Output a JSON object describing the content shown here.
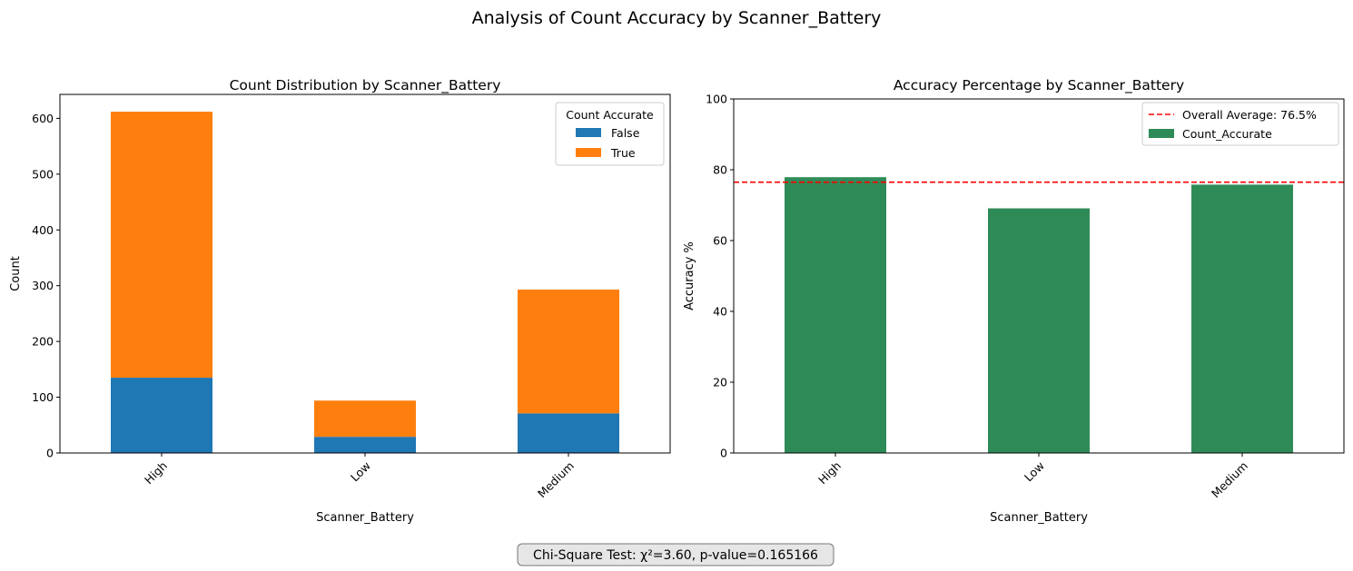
{
  "figure": {
    "suptitle": "Analysis of Count Accuracy by Scanner_Battery",
    "footer_note": "Chi-Square Test: χ²=3.60, p-value=0.165166"
  },
  "colors": {
    "false": "#1f77b4",
    "true": "#ff7f0e",
    "accuracy_bar": "#2e8b57",
    "average_line": "#ff0000",
    "footer_bg": "#e6e6e6",
    "footer_border": "#777777"
  },
  "chart_data": [
    {
      "type": "bar",
      "stacked": true,
      "title": "Count Distribution by Scanner_Battery",
      "xlabel": "Scanner_Battery",
      "ylabel": "Count",
      "categories": [
        "High",
        "Low",
        "Medium"
      ],
      "series": [
        {
          "name": "False",
          "values": [
            135,
            29,
            71
          ]
        },
        {
          "name": "True",
          "values": [
            477,
            65,
            222
          ]
        }
      ],
      "ylim": [
        0,
        643
      ],
      "yticks": [
        0,
        100,
        200,
        300,
        400,
        500,
        600
      ],
      "xtick_rotation": 45,
      "legend": {
        "title": "Count Accurate",
        "placement": "upper right"
      },
      "grid": false
    },
    {
      "type": "bar",
      "title": "Accuracy Percentage by Scanner_Battery",
      "xlabel": "Scanner_Battery",
      "ylabel": "Accuracy %",
      "categories": [
        "High",
        "Low",
        "Medium"
      ],
      "series": [
        {
          "name": "Count_Accurate",
          "values": [
            77.9,
            69.1,
            75.8
          ]
        }
      ],
      "reference_line": {
        "label": "Overall Average: 76.5%",
        "value": 76.5,
        "style": "dashed"
      },
      "ylim": [
        0,
        100
      ],
      "yticks": [
        0,
        20,
        40,
        60,
        80,
        100
      ],
      "xtick_rotation": 45,
      "legend": {
        "placement": "upper right"
      },
      "grid": false
    }
  ]
}
